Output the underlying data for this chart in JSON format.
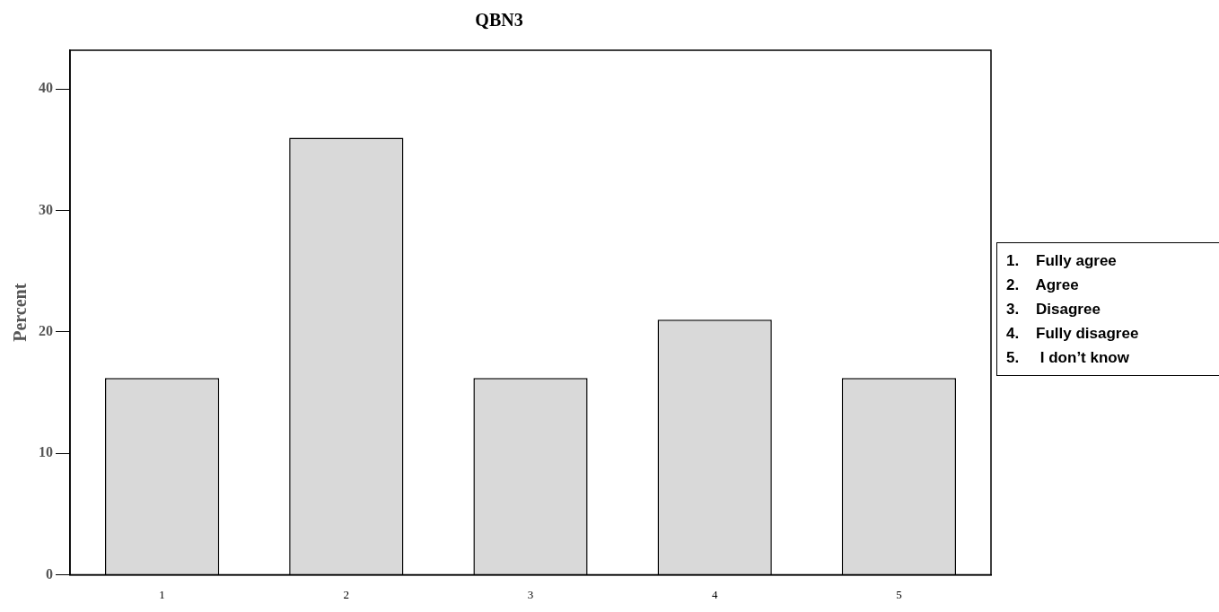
{
  "chart_data": {
    "type": "bar",
    "title": "QBN3",
    "ylabel": "Percent",
    "categories": [
      "1",
      "2",
      "3",
      "4",
      "5"
    ],
    "values": [
      16.2,
      36,
      16.2,
      21,
      16.2
    ],
    "color": "#d9d9d9",
    "ylim": [
      0,
      43.2
    ],
    "yticks": [
      0,
      10,
      20,
      30,
      40
    ],
    "grid": false,
    "legend": false,
    "annotations": [
      "1.    Fully agree",
      "2.    Agree",
      "3.    Disagree",
      "4.    Fully disagree",
      "5.     I don’t know"
    ]
  }
}
